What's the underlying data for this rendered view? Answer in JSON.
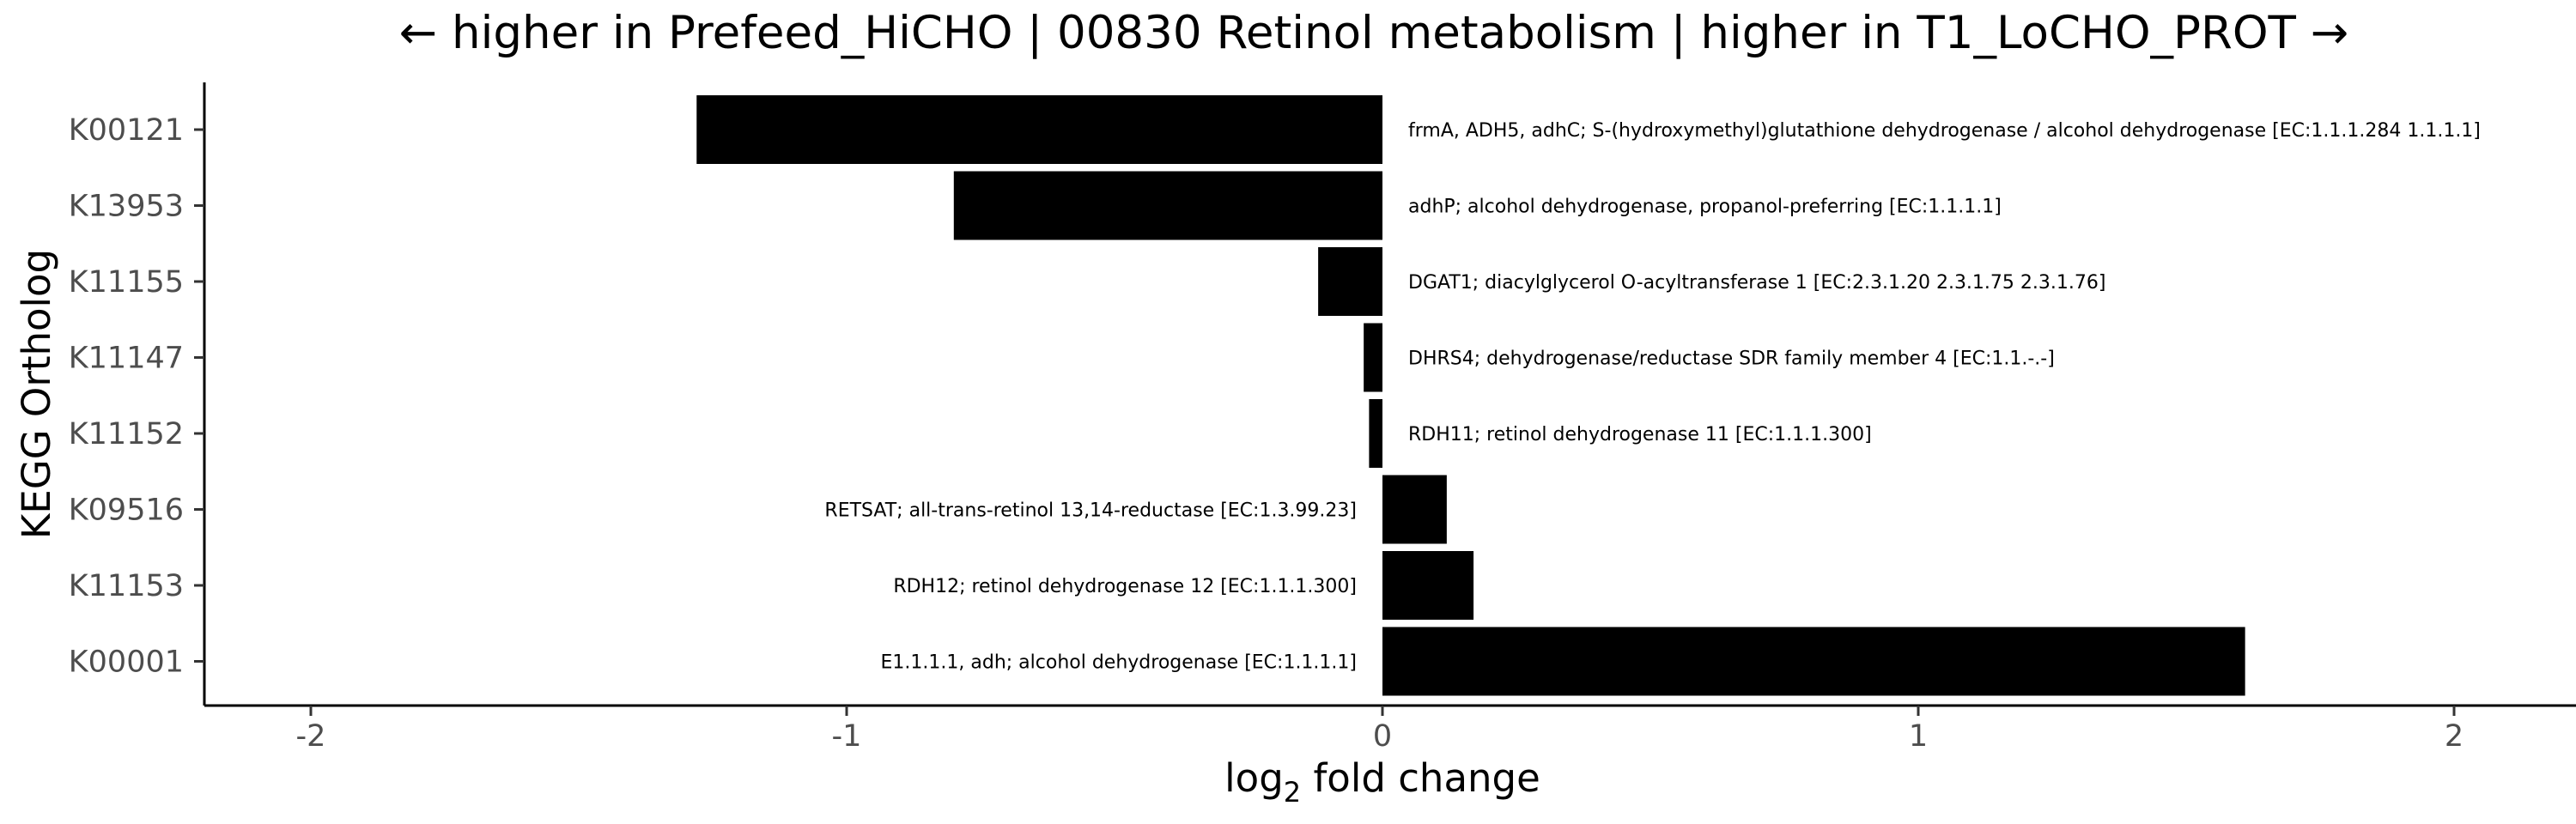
{
  "chart_data": {
    "type": "bar",
    "orientation": "horizontal",
    "title": "← higher in Prefeed_HiCHO | 00830 Retinol metabolism | higher in T1_LoCHO_PROT →",
    "xlabel": "log2 fold change",
    "xlabel_base": "log",
    "xlabel_sub": "2",
    "xlabel_rest": " fold change",
    "ylabel": "KEGG Ortholog",
    "xlim": [
      -2.2,
      2.2
    ],
    "x_ticks": [
      -2,
      -1,
      0,
      1,
      2
    ],
    "x_tick_labels": [
      "-2",
      "-1",
      "0",
      "1",
      "2"
    ],
    "grid": false,
    "bar_color": "#000000",
    "categories": [
      "K00121",
      "K13953",
      "K11155",
      "K11147",
      "K11152",
      "K09516",
      "K11153",
      "K00001"
    ],
    "values": [
      -1.28,
      -0.8,
      -0.12,
      -0.035,
      -0.025,
      0.12,
      0.17,
      1.61
    ],
    "annotations": [
      "frmA, ADH5, adhC; S-(hydroxymethyl)glutathione dehydrogenase / alcohol dehydrogenase [EC:1.1.1.284 1.1.1.1]",
      "adhP; alcohol dehydrogenase, propanol-preferring [EC:1.1.1.1]",
      "DGAT1; diacylglycerol O-acyltransferase 1 [EC:2.3.1.20 2.3.1.75 2.3.1.76]",
      "DHRS4; dehydrogenase/reductase SDR family member 4 [EC:1.1.-.-]",
      "RDH11; retinol dehydrogenase 11 [EC:1.1.1.300]",
      "RETSAT; all-trans-retinol 13,14-reductase [EC:1.3.99.23]",
      "RDH12; retinol dehydrogenase 12 [EC:1.1.1.300]",
      "E1.1.1.1, adh; alcohol dehydrogenase [EC:1.1.1.1]"
    ]
  }
}
